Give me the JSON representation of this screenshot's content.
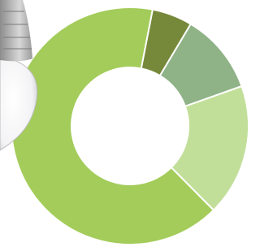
{
  "chart_data": {
    "type": "donut",
    "values": [
      5.5,
      11,
      18,
      65.5
    ],
    "colors": [
      "#76893a",
      "#8fb387",
      "#c2df9a",
      "#a3cc5a"
    ]
  }
}
